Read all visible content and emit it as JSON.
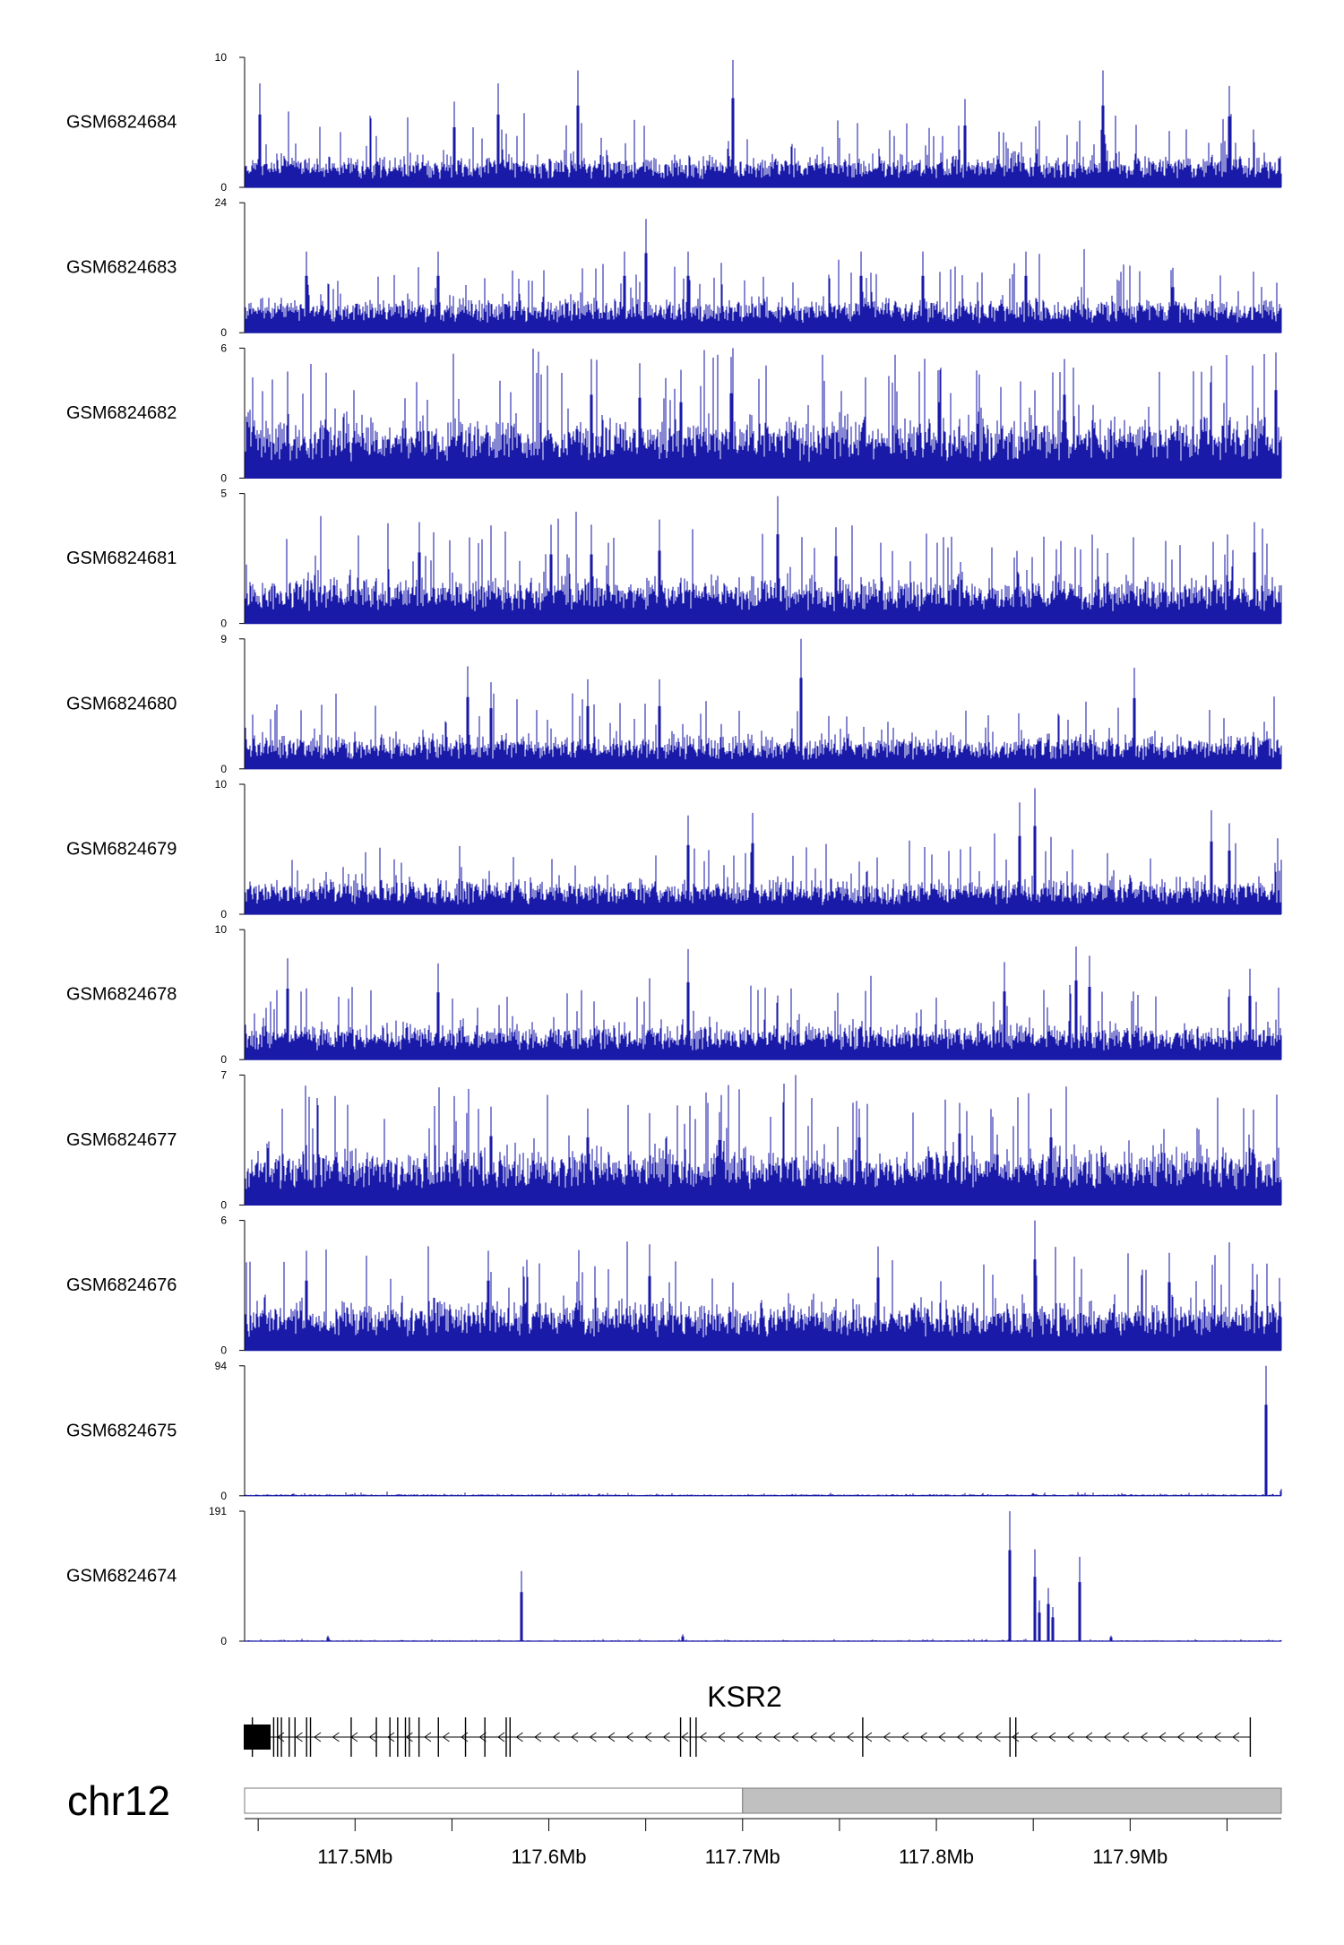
{
  "chart_data": {
    "type": "area",
    "chromosome": "chr12",
    "x_range_mb": [
      117.443,
      117.978
    ],
    "colors": {
      "signal": "#1a1aa8",
      "gene": "#000000",
      "ideogram_fill": "#c0c0c0"
    },
    "series": [
      {
        "name": "GSM6824684",
        "ymin": 0,
        "ymax": 10,
        "baseline": 1.8,
        "noise": 1.4,
        "spikes": [
          [
            117.451,
            8
          ],
          [
            117.551,
            6.6
          ],
          [
            117.574,
            8
          ],
          [
            117.615,
            9
          ],
          [
            117.695,
            9.8
          ],
          [
            117.815,
            6.8
          ],
          [
            117.886,
            9
          ],
          [
            117.951,
            7.8
          ]
        ]
      },
      {
        "name": "GSM6824683",
        "ymin": 0,
        "ymax": 24,
        "baseline": 5,
        "noise": 3,
        "spikes": [
          [
            117.475,
            15
          ],
          [
            117.543,
            15
          ],
          [
            117.639,
            15
          ],
          [
            117.65,
            21
          ],
          [
            117.672,
            15
          ],
          [
            117.761,
            15
          ],
          [
            117.793,
            15
          ],
          [
            117.846,
            15
          ],
          [
            117.922,
            12
          ]
        ]
      },
      {
        "name": "GSM6824682",
        "ymin": 0,
        "ymax": 6,
        "baseline": 2.1,
        "noise": 1.5,
        "spikes": [
          [
            117.622,
            5.5
          ],
          [
            117.647,
            5.3
          ],
          [
            117.668,
            5
          ],
          [
            117.694,
            5.6
          ],
          [
            117.802,
            5
          ],
          [
            117.866,
            5.5
          ],
          [
            117.975,
            5.8
          ]
        ]
      },
      {
        "name": "GSM6824681",
        "ymin": 0,
        "ymax": 5,
        "baseline": 1.3,
        "noise": 1.0,
        "spikes": [
          [
            117.533,
            3.9
          ],
          [
            117.601,
            3.8
          ],
          [
            117.622,
            3.8
          ],
          [
            117.657,
            4
          ],
          [
            117.718,
            4.9
          ],
          [
            117.748,
            3.7
          ],
          [
            117.964,
            3.9
          ]
        ]
      },
      {
        "name": "GSM6824680",
        "ymin": 0,
        "ymax": 9,
        "baseline": 1.7,
        "noise": 1.4,
        "spikes": [
          [
            117.558,
            7.1
          ],
          [
            117.57,
            6
          ],
          [
            117.62,
            6.2
          ],
          [
            117.657,
            6.2
          ],
          [
            117.73,
            9
          ],
          [
            117.902,
            7
          ]
        ]
      },
      {
        "name": "GSM6824679",
        "ymin": 0,
        "ymax": 10,
        "baseline": 2.0,
        "noise": 1.5,
        "spikes": [
          [
            117.672,
            7.6
          ],
          [
            117.705,
            7.8
          ],
          [
            117.843,
            8.6
          ],
          [
            117.851,
            9.7
          ],
          [
            117.942,
            8
          ],
          [
            117.951,
            7
          ]
        ]
      },
      {
        "name": "GSM6824678",
        "ymin": 0,
        "ymax": 10,
        "baseline": 2.0,
        "noise": 1.6,
        "spikes": [
          [
            117.465,
            7.8
          ],
          [
            117.543,
            7.4
          ],
          [
            117.672,
            8.5
          ],
          [
            117.835,
            7.5
          ],
          [
            117.872,
            8.7
          ],
          [
            117.879,
            8
          ],
          [
            117.962,
            7
          ]
        ]
      },
      {
        "name": "GSM6824677",
        "ymin": 0,
        "ymax": 7,
        "baseline": 2.3,
        "noise": 1.6,
        "spikes": [
          [
            117.57,
            5.3
          ],
          [
            117.62,
            5.2
          ],
          [
            117.688,
            5
          ],
          [
            117.76,
            5.2
          ],
          [
            117.812,
            5.5
          ],
          [
            117.859,
            5.2
          ]
        ]
      },
      {
        "name": "GSM6824676",
        "ymin": 0,
        "ymax": 6,
        "baseline": 1.7,
        "noise": 1.2,
        "spikes": [
          [
            117.475,
            4.6
          ],
          [
            117.569,
            4.6
          ],
          [
            117.652,
            4.9
          ],
          [
            117.77,
            4.8
          ],
          [
            117.851,
            6
          ],
          [
            117.92,
            4.5
          ],
          [
            117.963,
            4
          ]
        ]
      },
      {
        "name": "GSM6824675",
        "ymin": 0,
        "ymax": 94,
        "baseline": 0.5,
        "noise": 1.0,
        "spikes": [
          [
            117.97,
            94
          ],
          [
            117.978,
            5
          ],
          [
            117.85,
            2
          ]
        ]
      },
      {
        "name": "GSM6824674",
        "ymin": 0,
        "ymax": 191,
        "baseline": 0.6,
        "noise": 1.2,
        "spikes": [
          [
            117.486,
            8
          ],
          [
            117.586,
            103
          ],
          [
            117.669,
            10
          ],
          [
            117.838,
            191
          ],
          [
            117.851,
            135
          ],
          [
            117.853,
            60
          ],
          [
            117.858,
            78
          ],
          [
            117.86,
            50
          ],
          [
            117.874,
            124
          ],
          [
            117.89,
            8
          ]
        ]
      }
    ],
    "gene": {
      "name": "KSR2",
      "strand": "-",
      "start": 117.443,
      "end": 117.962,
      "exons": [
        117.447,
        117.458,
        117.46,
        117.462,
        117.466,
        117.469,
        117.475,
        117.477,
        117.498,
        117.511,
        117.518,
        117.522,
        117.526,
        117.528,
        117.533,
        117.543,
        117.557,
        117.567,
        117.578,
        117.58,
        117.668,
        117.673,
        117.676,
        117.762,
        117.838,
        117.841,
        117.962
      ]
    },
    "axis": {
      "ticks": [
        117.45,
        117.5,
        117.55,
        117.6,
        117.65,
        117.7,
        117.75,
        117.8,
        117.85,
        117.9,
        117.95
      ],
      "labeled_ticks": [
        "117.5Mb",
        "117.6Mb",
        "117.7Mb",
        "117.8Mb",
        "117.9Mb"
      ],
      "labeled_values": [
        117.5,
        117.6,
        117.7,
        117.8,
        117.9
      ],
      "ideogram_band_start": 117.7
    }
  }
}
